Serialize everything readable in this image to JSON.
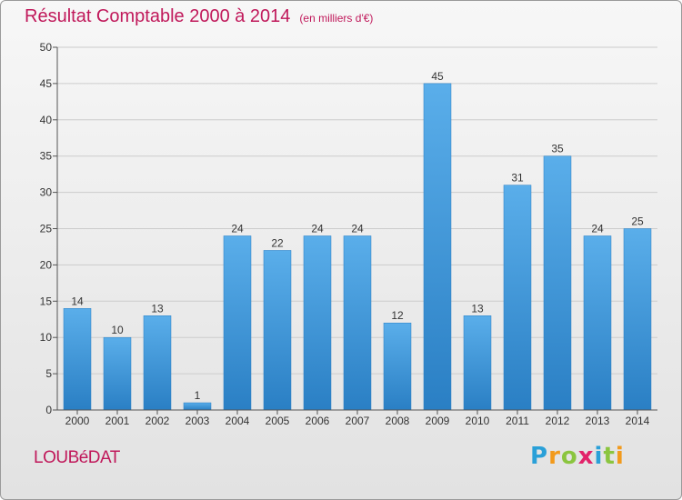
{
  "header": {
    "title": "Résultat Comptable 2000 à 2014",
    "unit": "(en milliers d'€)"
  },
  "commune": "LOUBéDAT",
  "logo": {
    "letters": [
      {
        "char": "P",
        "color": "#2aa0d8"
      },
      {
        "char": "r",
        "color": "#f29a1c"
      },
      {
        "char": "o",
        "color": "#8bc53f"
      },
      {
        "char": "x",
        "color": "#e2236a"
      },
      {
        "char": "i",
        "color": "#2aa0d8"
      },
      {
        "char": "t",
        "color": "#8bc53f"
      },
      {
        "char": "i",
        "color": "#f29a1c"
      }
    ]
  },
  "colors": {
    "title": "#c0185a",
    "bar_top": "#5aaeea",
    "bar_bottom": "#2a7fc4",
    "axis": "#555555",
    "grid": "#cccccc"
  },
  "chart_data": {
    "type": "bar",
    "title": "Résultat Comptable 2000 à 2014",
    "categories": [
      "2000",
      "2001",
      "2002",
      "2003",
      "2004",
      "2005",
      "2006",
      "2007",
      "2008",
      "2009",
      "2010",
      "2011",
      "2012",
      "2013",
      "2014"
    ],
    "values": [
      14,
      10,
      13,
      1,
      24,
      22,
      24,
      24,
      12,
      45,
      13,
      31,
      35,
      24,
      25
    ],
    "ylim": [
      0,
      50
    ],
    "yticks": [
      0,
      5,
      10,
      15,
      20,
      25,
      30,
      35,
      40,
      45,
      50
    ],
    "xlabel": "",
    "ylabel": "",
    "grid": true,
    "show_value_labels": true
  }
}
